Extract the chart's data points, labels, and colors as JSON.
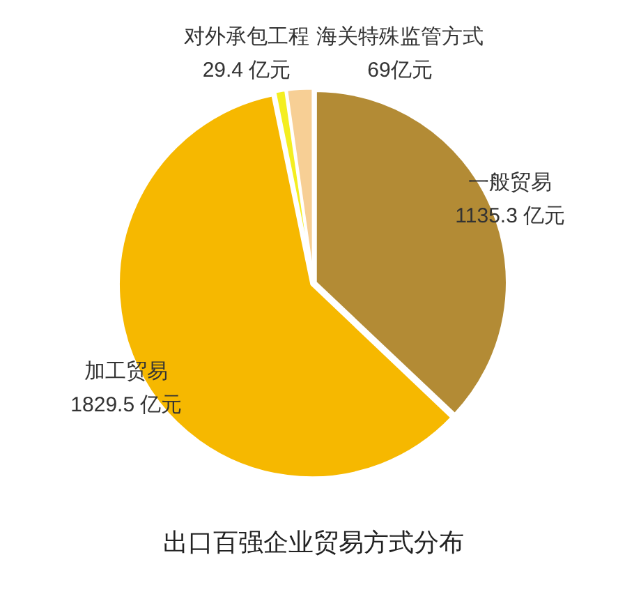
{
  "chart_data": {
    "type": "pie",
    "title": "出口百强企业贸易方式分布",
    "categories": [
      "一般贸易",
      "加工贸易",
      "对外承包工程",
      "海关特殊监管方式"
    ],
    "values": [
      1135.3,
      1829.5,
      29.4,
      69
    ],
    "value_labels": [
      "1135.3 亿元",
      "1829.5 亿元",
      "29.4 亿元",
      "69亿元"
    ],
    "colors": [
      "#b38b35",
      "#f6b800",
      "#f4ee20",
      "#f7cf95"
    ],
    "legend": false
  }
}
